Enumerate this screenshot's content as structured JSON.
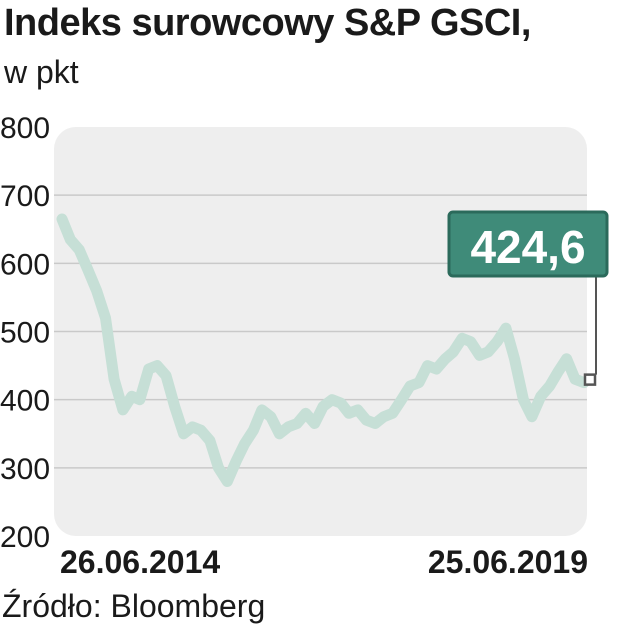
{
  "title": "Indeks surowcowy S&P GSCI,",
  "subtitle": "w pkt",
  "source": "Źródło: Bloomberg",
  "colors": {
    "panel": "#eeeeee",
    "line": "#c6dfd6",
    "callout_bg": "#3f8b79",
    "callout_border": "#2b6a5b",
    "callout_text": "#ffffff",
    "grid": "#c9c9c9",
    "marker": "#555555"
  },
  "chart_data": {
    "type": "line",
    "title": "Indeks surowcowy S&P GSCI,",
    "ylabel": "w pkt",
    "xlabel": "",
    "ylim": [
      200,
      800
    ],
    "yticks": [
      200,
      300,
      400,
      500,
      600,
      700,
      800
    ],
    "yticklabels": [
      "200",
      "300",
      "400",
      "500",
      "600",
      "700",
      "800"
    ],
    "xticklabels": [
      "26.06.2014",
      "25.06.2019"
    ],
    "x_start": "2014-06-26",
    "x_end": "2019-06-25",
    "grid": true,
    "last_value_label": "424,6",
    "last_value": 424.6,
    "series": [
      {
        "x": [
          "2014-06-26",
          "2014-07-25",
          "2014-08-25",
          "2014-09-25",
          "2014-10-25",
          "2014-11-25",
          "2014-12-25",
          "2015-01-25",
          "2015-02-25",
          "2015-03-25",
          "2015-04-25",
          "2015-05-25",
          "2015-06-25",
          "2015-07-25",
          "2015-08-25",
          "2015-09-25",
          "2015-10-25",
          "2015-11-25",
          "2015-12-25",
          "2016-01-25",
          "2016-02-25",
          "2016-03-25",
          "2016-04-25",
          "2016-05-25",
          "2016-06-25",
          "2016-07-25",
          "2016-08-25",
          "2016-09-25",
          "2016-10-25",
          "2016-11-25",
          "2016-12-25",
          "2017-01-25",
          "2017-02-25",
          "2017-03-25",
          "2017-04-25",
          "2017-05-25",
          "2017-06-25",
          "2017-07-25",
          "2017-08-25",
          "2017-09-25",
          "2017-10-25",
          "2017-11-25",
          "2017-12-25",
          "2018-01-25",
          "2018-02-25",
          "2018-03-25",
          "2018-04-25",
          "2018-05-25",
          "2018-06-25",
          "2018-07-25",
          "2018-08-25",
          "2018-09-25",
          "2018-10-25",
          "2018-11-25",
          "2018-12-25",
          "2019-01-25",
          "2019-02-25",
          "2019-03-25",
          "2019-04-25",
          "2019-05-25",
          "2019-06-25"
        ],
        "values": [
          665,
          635,
          620,
          590,
          560,
          520,
          430,
          385,
          405,
          400,
          445,
          450,
          435,
          390,
          350,
          360,
          355,
          340,
          300,
          280,
          310,
          335,
          355,
          385,
          375,
          350,
          360,
          365,
          380,
          365,
          390,
          400,
          395,
          380,
          385,
          370,
          365,
          375,
          380,
          400,
          420,
          425,
          450,
          445,
          460,
          470,
          490,
          485,
          465,
          470,
          485,
          505,
          460,
          400,
          375,
          405,
          420,
          440,
          460,
          430,
          425
        ]
      }
    ]
  }
}
